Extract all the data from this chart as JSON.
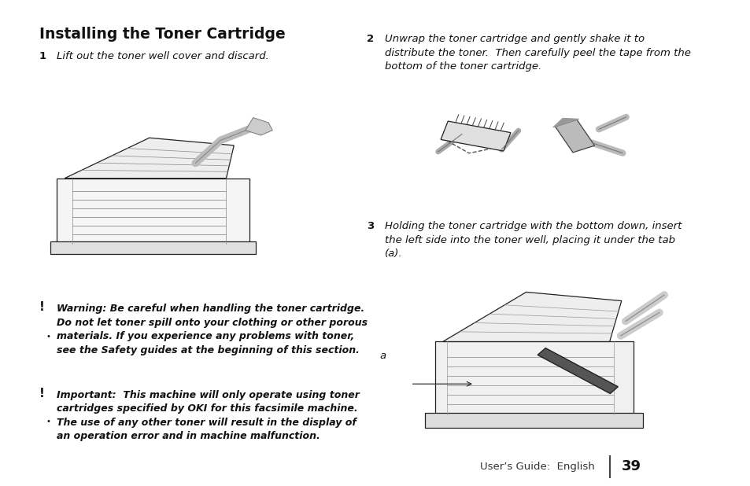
{
  "bg_color": "#ffffff",
  "title": "Installing the Toner Cartridge",
  "title_fontsize": 13.5,
  "title_bold": true,
  "footer_text": "User’s Guide:  English",
  "footer_page": "39",
  "step1_num": "1",
  "step1_text": "Lift out the toner well cover and discard.",
  "step2_num": "2",
  "step2_text": "Unwrap the toner cartridge and gently shake it to\ndistribute the toner.  Then carefully peel the tape from the\nbottom of the toner cartridge.",
  "step3_num": "3",
  "step3_text": "Holding the toner cartridge with the bottom down, insert\nthe left side into the toner well, placing it under the tab\n(a).",
  "warning_icon": "!",
  "warning_text": "Warning: Be careful when handling the toner cartridge.\nDo not let toner spill onto your clothing or other porous\nmaterials. If you experience any problems with toner,\nsee the Safety guides at the beginning of this section.",
  "important_icon": "!",
  "important_text": "Important:  This machine will only operate using toner\ncartridges specified by OKI for this facsimile machine.\nThe use of any other toner will result in the display of\nan operation error and in machine malfunction.",
  "label_a": "a",
  "body_fontsize": 9.5,
  "warning_fontsize": 9.0,
  "footer_fontsize": 9.5,
  "page_num_fontsize": 13
}
